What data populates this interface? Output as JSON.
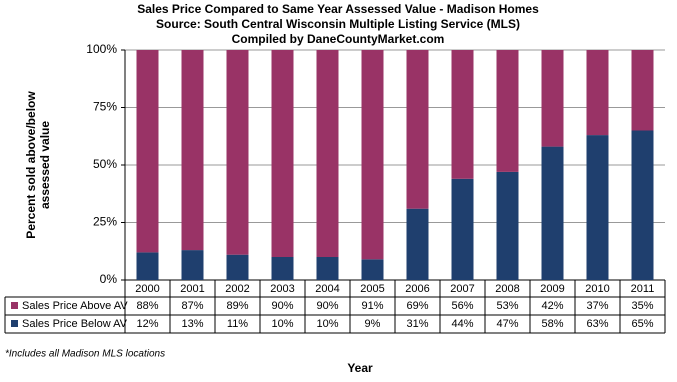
{
  "chart_data": {
    "type": "stacked_bar",
    "title": "Sales Price Compared to Same Year Assessed Value - Madison Homes",
    "subtitle": "Source: South Central Wisconsin Multiple Listing Service (MLS)",
    "subtitle2": "Compiled by DaneCountyMarket.com",
    "ylabel": [
      "Percent sold above/below",
      "assessed value"
    ],
    "xlabel": "Year",
    "footnote": "*Includes all Madison MLS locations",
    "categories": [
      "2000",
      "2001",
      "2002",
      "2003",
      "2004",
      "2005",
      "2006",
      "2007",
      "2008",
      "2009",
      "2010",
      "2011"
    ],
    "series": [
      {
        "name": "Sales Price Above AV",
        "color": "#993366",
        "values": [
          88,
          87,
          89,
          90,
          90,
          91,
          69,
          56,
          53,
          42,
          37,
          35
        ],
        "value_labels": [
          "88%",
          "87%",
          "89%",
          "90%",
          "90%",
          "91%",
          "69%",
          "56%",
          "53%",
          "42%",
          "37%",
          "35%"
        ]
      },
      {
        "name": "Sales Price Below AV",
        "color": "#1f3f6e",
        "values": [
          12,
          13,
          11,
          10,
          10,
          9,
          31,
          44,
          47,
          58,
          63,
          65
        ],
        "value_labels": [
          "12%",
          "13%",
          "11%",
          "10%",
          "10%",
          "9%",
          "31%",
          "44%",
          "47%",
          "58%",
          "63%",
          "65%"
        ]
      }
    ],
    "ylim": [
      0,
      100
    ],
    "yticks": [
      {
        "value": 0,
        "label": "0%"
      },
      {
        "value": 25,
        "label": "25%"
      },
      {
        "value": 50,
        "label": "50%"
      },
      {
        "value": 75,
        "label": "75%"
      },
      {
        "value": 100,
        "label": "100%"
      }
    ],
    "grid": true
  }
}
